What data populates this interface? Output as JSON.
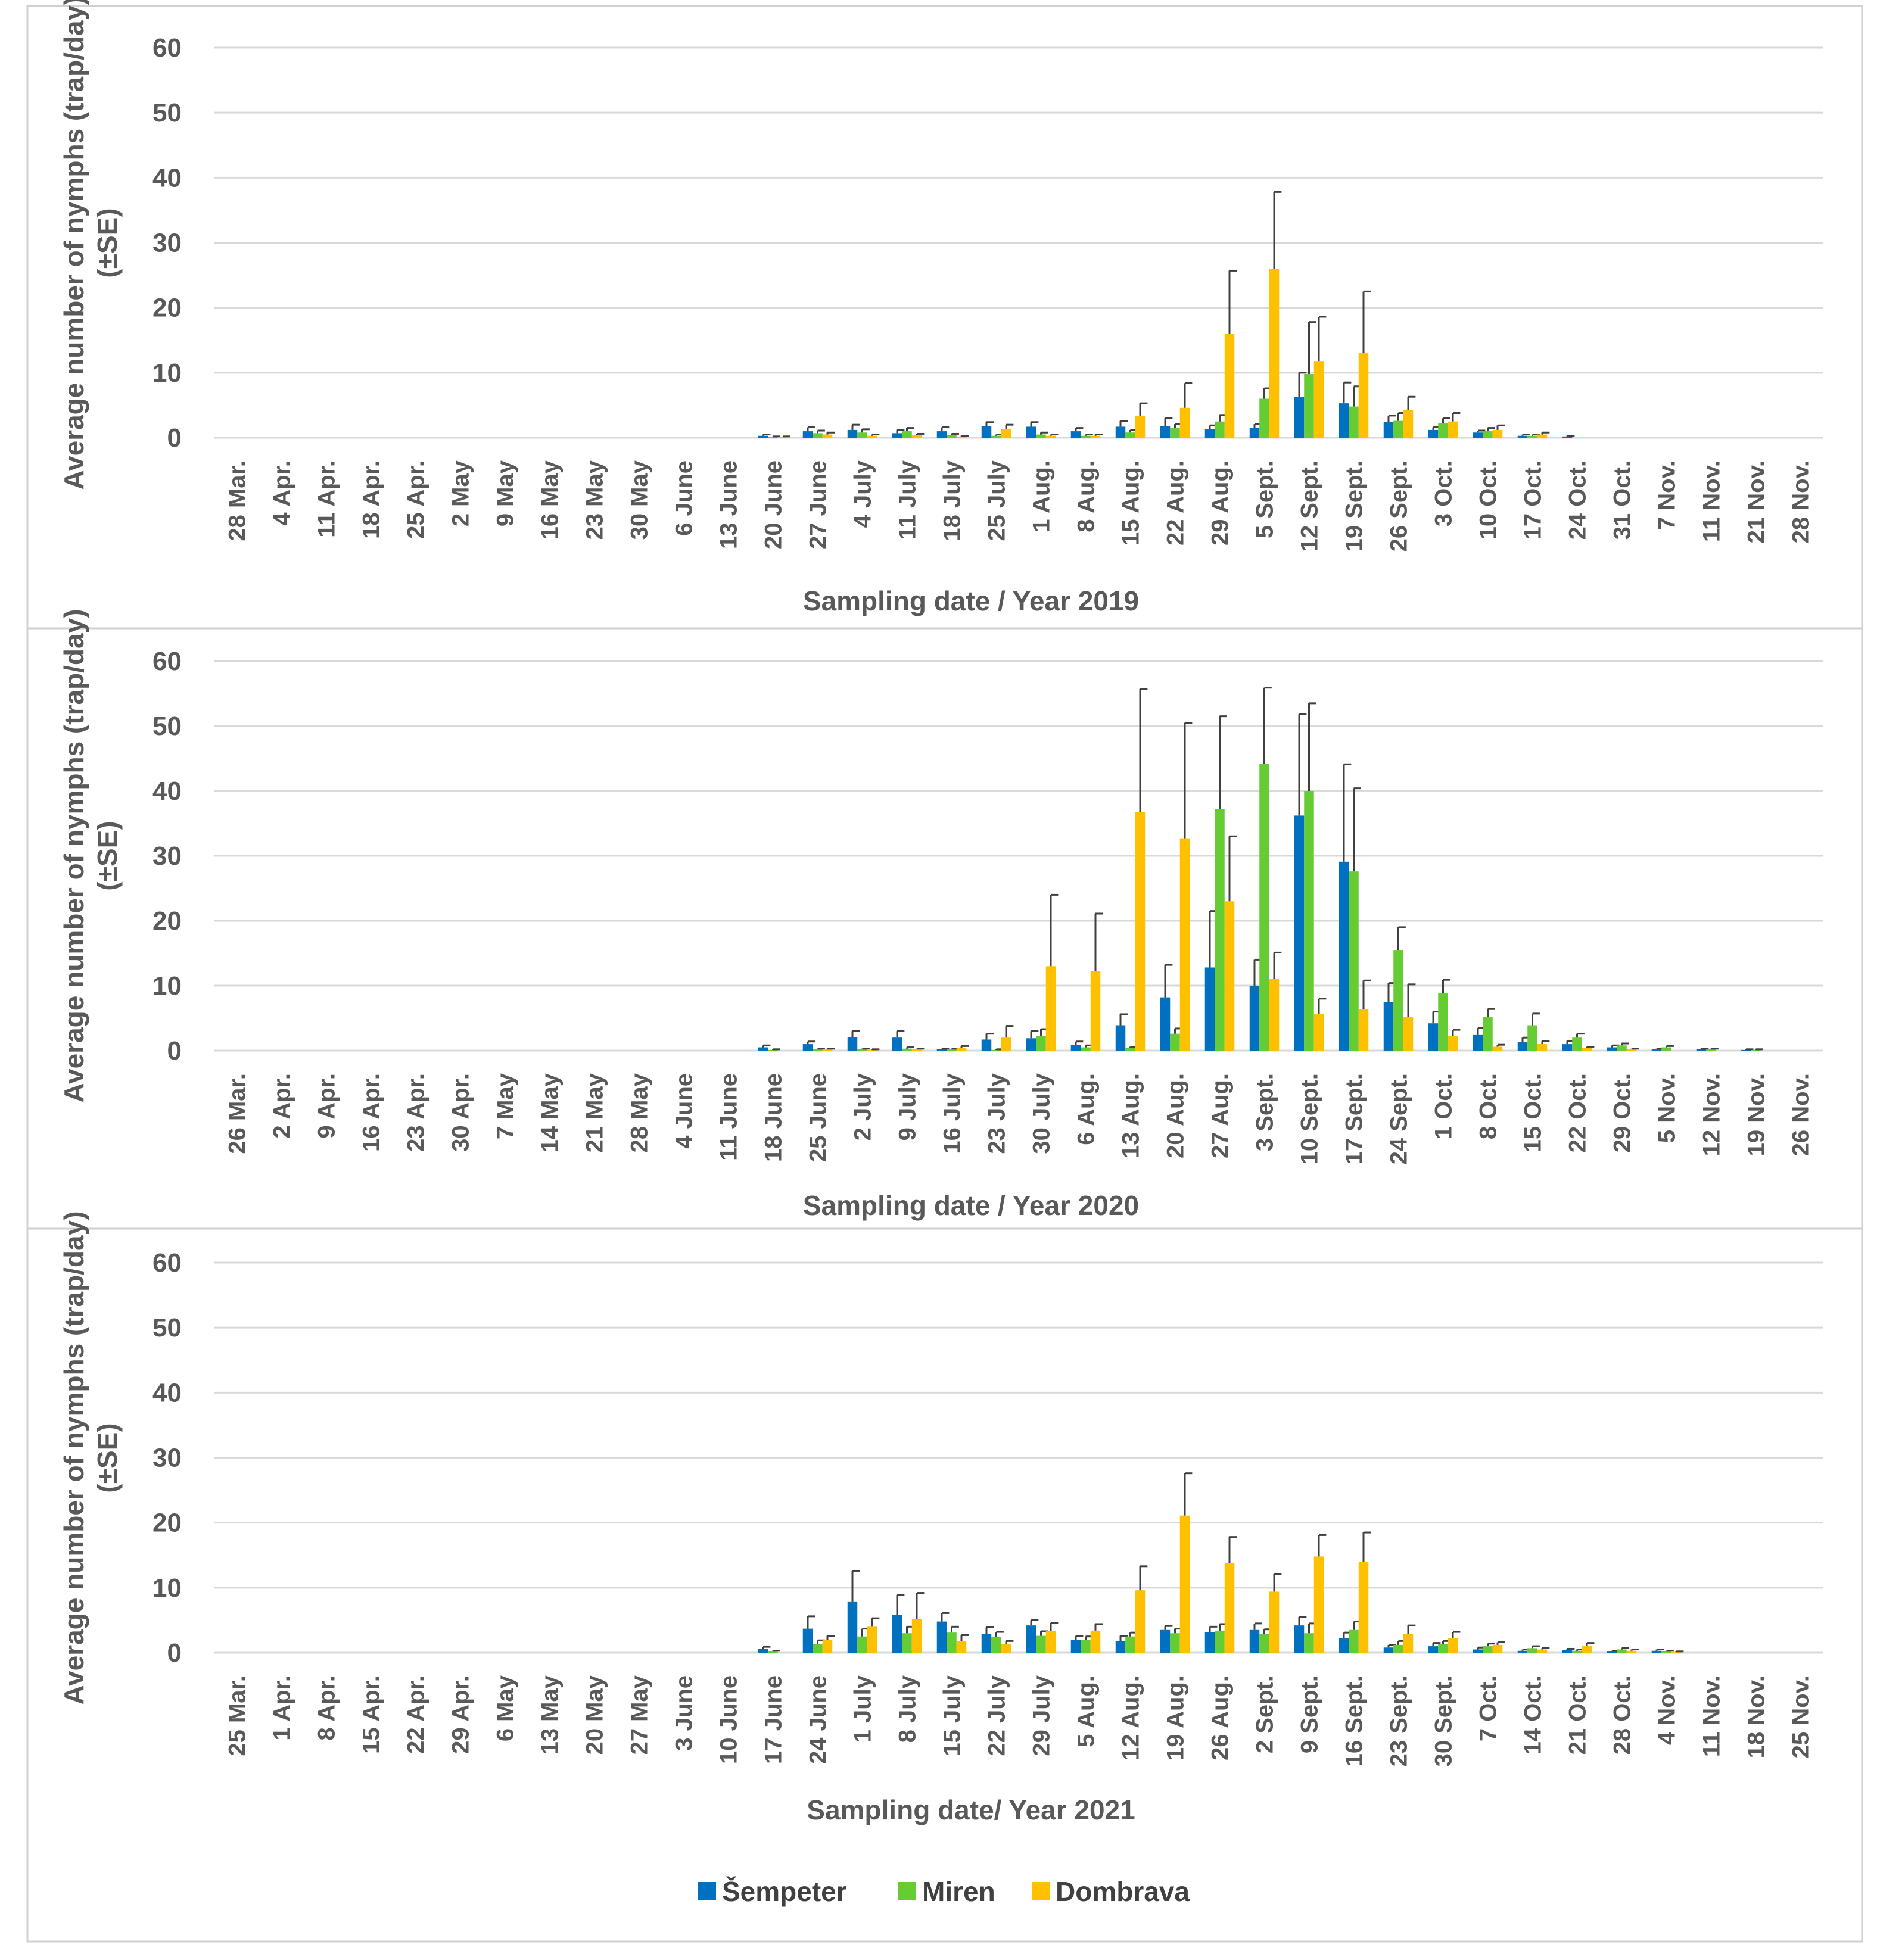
{
  "colors": {
    "sempeter": "#0070c0",
    "miren": "#66cc33",
    "dombrava": "#ffc000",
    "grid": "#d9d9d9",
    "error_bar": "#404040",
    "frame": "#d0d0d0"
  },
  "legend": [
    "Šempeter",
    "Miren",
    "Dombrava"
  ],
  "chart_data": [
    {
      "type": "bar",
      "xlabel": "Sampling date / Year 2019",
      "ylabel": "Average number of nymphs (trap/day) (±SE)",
      "ylim": [
        0,
        60
      ],
      "yticks": [
        "0",
        "10",
        "20",
        "30",
        "40",
        "50",
        "60"
      ],
      "grid": true,
      "categories": [
        "28 Mar.",
        "4 Apr.",
        "11 Apr.",
        "18 Apr.",
        "25 Apr.",
        "2 May",
        "9 May",
        "16 May",
        "23 May",
        "30 May",
        "6 June",
        "13 June",
        "20 June",
        "27 June",
        "4 July",
        "11 July",
        "18 July",
        "25 July",
        "1 Aug.",
        "8 Aug.",
        "15 Aug.",
        "22 Aug.",
        "29 Aug.",
        "5 Sept.",
        "12 Sept.",
        "19 Sept.",
        "26 Sept.",
        "3 Oct.",
        "10 Oct.",
        "17 Oct.",
        "24 Oct.",
        "31 Oct.",
        "7 Nov.",
        "11 Nov.",
        "21 Nov.",
        "28 Nov."
      ],
      "series": [
        {
          "name": "Šempeter",
          "values": [
            0,
            0,
            0,
            0,
            0,
            0,
            0,
            0,
            0,
            0,
            0,
            0,
            0.3,
            1,
            1.2,
            0.7,
            1,
            1.8,
            1.7,
            1,
            1.7,
            1.8,
            1.3,
            1.5,
            6.3,
            5.3,
            2.4,
            1.2,
            0.8,
            0.3,
            0.2,
            0,
            0,
            0,
            0,
            0
          ],
          "se": [
            0,
            0,
            0,
            0,
            0,
            0,
            0,
            0,
            0,
            0,
            0,
            0,
            0.2,
            0.6,
            0.8,
            0.5,
            0.6,
            0.6,
            0.7,
            0.5,
            0.9,
            1.2,
            0.6,
            0.6,
            3.7,
            3.2,
            1,
            0.4,
            0.3,
            0.2,
            0.1,
            0,
            0,
            0,
            0,
            0
          ]
        },
        {
          "name": "Miren",
          "values": [
            0,
            0,
            0,
            0,
            0,
            0,
            0,
            0,
            0,
            0,
            0,
            0,
            0.1,
            0.7,
            0.8,
            1,
            0.4,
            0.3,
            0.5,
            0.3,
            0.8,
            1.5,
            2.5,
            6,
            9.8,
            4.8,
            2.6,
            2.2,
            1,
            0.3,
            0,
            0,
            0,
            0,
            0,
            0
          ],
          "se": [
            0,
            0,
            0,
            0,
            0,
            0,
            0,
            0,
            0,
            0,
            0,
            0,
            0.1,
            0.4,
            0.5,
            0.5,
            0.2,
            0.2,
            0.3,
            0.2,
            0.4,
            0.6,
            1,
            1.6,
            8,
            3.1,
            1.2,
            0.8,
            0.5,
            0.2,
            0,
            0,
            0,
            0,
            0,
            0
          ]
        },
        {
          "name": "Dombrava",
          "values": [
            0,
            0,
            0,
            0,
            0,
            0,
            0,
            0,
            0,
            0,
            0,
            0,
            0.1,
            0.5,
            0.3,
            0.4,
            0.2,
            1.3,
            0.3,
            0.3,
            3.4,
            4.6,
            16,
            26,
            11.8,
            13,
            4.3,
            2.5,
            1.2,
            0.5,
            0,
            0,
            0,
            0,
            0,
            0
          ],
          "se": [
            0,
            0,
            0,
            0,
            0,
            0,
            0,
            0,
            0,
            0,
            0,
            0,
            0.1,
            0.3,
            0.2,
            0.2,
            0.1,
            0.7,
            0.2,
            0.2,
            1.9,
            3.8,
            9.7,
            11.8,
            6.8,
            9.5,
            2,
            1.3,
            0.7,
            0.3,
            0,
            0,
            0,
            0,
            0,
            0
          ]
        }
      ]
    },
    {
      "type": "bar",
      "xlabel": "Sampling date / Year 2020",
      "ylabel": "Average number of nymphs (trap/day) (±SE)",
      "ylim": [
        0,
        60
      ],
      "yticks": [
        "0",
        "10",
        "20",
        "30",
        "40",
        "50",
        "60"
      ],
      "grid": true,
      "categories": [
        "26 Mar.",
        "2 Apr.",
        "9 Apr.",
        "16 Apr.",
        "23 Apr.",
        "30 Apr.",
        "7 May",
        "14 May",
        "21 May",
        "28 May",
        "4 June",
        "11 June",
        "18 June",
        "25 June",
        "2 July",
        "9 July",
        "16 July",
        "23 July",
        "30 July",
        "6 Aug.",
        "13 Aug.",
        "20 Aug.",
        "27 Aug.",
        "3 Sept.",
        "10 Sept.",
        "17 Sept.",
        "24 Sept.",
        "1 Oct.",
        "8 Oct.",
        "15 Oct.",
        "22 Oct.",
        "29 Oct.",
        "5 Nov.",
        "12 Nov.",
        "19 Nov.",
        "26 Nov."
      ],
      "series": [
        {
          "name": "Šempeter",
          "values": [
            0,
            0,
            0,
            0,
            0,
            0,
            0,
            0,
            0,
            0,
            0,
            0,
            0.5,
            1,
            2.1,
            2,
            0.2,
            1.7,
            1.9,
            0.9,
            3.9,
            8.2,
            12.8,
            10,
            36.2,
            29.1,
            7.5,
            4.2,
            2.4,
            1.3,
            1,
            0.5,
            0.2,
            0.2,
            0.1,
            0
          ],
          "se": [
            0,
            0,
            0,
            0,
            0,
            0,
            0,
            0,
            0,
            0,
            0,
            0,
            0.3,
            0.4,
            0.9,
            1,
            0.1,
            0.9,
            1.1,
            0.5,
            1.7,
            5,
            8.7,
            4,
            15.6,
            15,
            2.9,
            1.8,
            1.1,
            0.7,
            0.5,
            0.3,
            0.1,
            0.1,
            0.1,
            0
          ]
        },
        {
          "name": "Miren",
          "values": [
            0,
            0,
            0,
            0,
            0,
            0,
            0,
            0,
            0,
            0,
            0,
            0,
            0.1,
            0.2,
            0.2,
            0.3,
            0.2,
            0.1,
            2.3,
            0.5,
            0.4,
            2.6,
            37.2,
            44.2,
            40,
            27.6,
            15.5,
            8.9,
            5.2,
            3.9,
            2,
            0.8,
            0.5,
            0.2,
            0.1,
            0
          ],
          "se": [
            0,
            0,
            0,
            0,
            0,
            0,
            0,
            0,
            0,
            0,
            0,
            0,
            0.1,
            0.1,
            0.1,
            0.2,
            0.1,
            0.1,
            1,
            0.3,
            0.2,
            0.8,
            14.3,
            11.7,
            13.5,
            12.8,
            3.5,
            2,
            1.2,
            1.8,
            0.6,
            0.3,
            0.2,
            0.1,
            0.1,
            0
          ]
        },
        {
          "name": "Dombrava",
          "values": [
            0,
            0,
            0,
            0,
            0,
            0,
            0,
            0,
            0,
            0,
            0,
            0,
            0,
            0.2,
            0.1,
            0.2,
            0.4,
            2,
            13,
            12.2,
            36.7,
            32.7,
            23,
            11,
            5.6,
            6.4,
            5.2,
            2.2,
            0.6,
            1,
            0.4,
            0.2,
            0,
            0,
            0,
            0
          ],
          "se": [
            0,
            0,
            0,
            0,
            0,
            0,
            0,
            0,
            0,
            0,
            0,
            0,
            0,
            0.1,
            0.1,
            0.1,
            0.3,
            1.8,
            11,
            8.9,
            19,
            17.8,
            10,
            4.1,
            2.4,
            4.4,
            5,
            1,
            0.3,
            0.5,
            0.2,
            0.1,
            0,
            0,
            0,
            0
          ]
        }
      ]
    },
    {
      "type": "bar",
      "xlabel": "Sampling date/ Year 2021",
      "ylabel": "Average number of nymphs (trap/day) (±SE)",
      "ylim": [
        0,
        60
      ],
      "yticks": [
        "0",
        "10",
        "20",
        "30",
        "40",
        "50",
        "60"
      ],
      "grid": true,
      "categories": [
        "25 Mar.",
        "1 Apr.",
        "8 Apr.",
        "15 Apr.",
        "22 Apr.",
        "29 Apr.",
        "6 May",
        "13 May",
        "20 May",
        "27 May",
        "3 June",
        "10 June",
        "17 June",
        "24 June",
        "1 July",
        "8 July",
        "15 July",
        "22 July",
        "29 July",
        "5 Aug.",
        "12 Aug.",
        "19 Aug.",
        "26 Aug.",
        "2 Sept.",
        "9 Sept.",
        "16 Sept.",
        "23 Sept.",
        "30 Sept.",
        "7 Oct.",
        "14 Oct.",
        "21 Oct.",
        "28 Oct.",
        "4 Nov.",
        "11 Nov.",
        "18 Nov.",
        "25 Nov."
      ],
      "series": [
        {
          "name": "Šempeter",
          "values": [
            0,
            0,
            0,
            0,
            0,
            0,
            0,
            0,
            0,
            0,
            0,
            0,
            0.6,
            3.7,
            7.8,
            5.8,
            4.8,
            2.9,
            4.2,
            2,
            1.8,
            3.5,
            3.2,
            3.5,
            4.2,
            2.2,
            0.8,
            1,
            0.5,
            0.3,
            0.4,
            0.2,
            0.3,
            0,
            0,
            0
          ],
          "se": [
            0,
            0,
            0,
            0,
            0,
            0,
            0,
            0,
            0,
            0,
            0,
            0,
            0.3,
            1.9,
            4.8,
            3.1,
            1.3,
            1,
            0.8,
            0.6,
            0.8,
            0.6,
            0.8,
            1,
            1.3,
            0.9,
            0.4,
            0.5,
            0.3,
            0.2,
            0.2,
            0.1,
            0.2,
            0,
            0,
            0
          ]
        },
        {
          "name": "Miren",
          "values": [
            0,
            0,
            0,
            0,
            0,
            0,
            0,
            0,
            0,
            0,
            0,
            0,
            0.2,
            1.3,
            2.5,
            3,
            3.1,
            2.4,
            2.6,
            2,
            2.5,
            3,
            3.4,
            2.9,
            3,
            3.5,
            1.2,
            1.3,
            1,
            0.7,
            0.3,
            0.5,
            0.2,
            0,
            0,
            0
          ],
          "se": [
            0,
            0,
            0,
            0,
            0,
            0,
            0,
            0,
            0,
            0,
            0,
            0,
            0.1,
            0.6,
            1.2,
            1,
            0.9,
            0.8,
            0.7,
            0.5,
            0.6,
            0.7,
            1,
            0.7,
            1.5,
            1.3,
            0.6,
            0.5,
            0.4,
            0.3,
            0.2,
            0.2,
            0.1,
            0,
            0,
            0
          ]
        },
        {
          "name": "Dombrava",
          "values": [
            0,
            0,
            0,
            0,
            0,
            0,
            0,
            0,
            0,
            0,
            0,
            0,
            0,
            2,
            4,
            5.2,
            1.8,
            1.3,
            3.3,
            3.4,
            9.6,
            21.1,
            13.8,
            9.4,
            14.8,
            14,
            2.9,
            2.2,
            1.2,
            0.5,
            1,
            0.3,
            0.1,
            0,
            0,
            0
          ],
          "se": [
            0,
            0,
            0,
            0,
            0,
            0,
            0,
            0,
            0,
            0,
            0,
            0,
            0,
            0.6,
            1.3,
            4,
            0.9,
            0.5,
            1.3,
            1,
            3.7,
            6.5,
            4,
            2.7,
            3.3,
            4.5,
            1.3,
            1,
            0.4,
            0.2,
            0.5,
            0.2,
            0.1,
            0,
            0,
            0
          ]
        }
      ]
    }
  ]
}
